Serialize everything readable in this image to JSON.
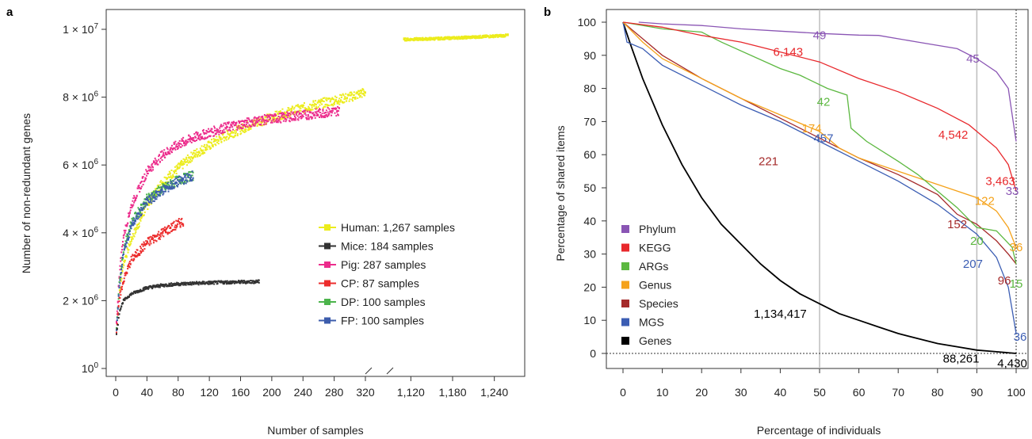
{
  "chart_data": [
    {
      "type": "scatter",
      "panel_label": "a",
      "xlabel": "Number of samples",
      "ylabel": "Number of non-redundant genes",
      "xlim_left": [
        0,
        320
      ],
      "xlim_right": [
        1090,
        1270
      ],
      "ylim": [
        0,
        10000000
      ],
      "x_ticks_left": [
        0,
        40,
        80,
        120,
        160,
        200,
        240,
        280,
        320
      ],
      "x_ticks_right": [
        1120,
        1180,
        1240
      ],
      "x_tick_labels_left": [
        "0",
        "40",
        "80",
        "120",
        "160",
        "200",
        "240",
        "280",
        "320"
      ],
      "x_tick_labels_right": [
        "1,120",
        "1,180",
        "1,240"
      ],
      "y_ticks": [
        0,
        2000000,
        4000000,
        6000000,
        8000000,
        10000000
      ],
      "y_tick_bases": [
        "10",
        "2 × 10",
        "4 × 10",
        "6 × 10",
        "8 × 10",
        "1 × 10"
      ],
      "y_tick_exps": [
        "0",
        "6",
        "6",
        "6",
        "6",
        "7"
      ],
      "legend_position": "bottom-right",
      "series": [
        {
          "name": "Human: 1,267 samples",
          "color": "#ecec1c",
          "points": [
            [
              5,
              2300000
            ],
            [
              10,
              3100000
            ],
            [
              20,
              3800000
            ],
            [
              40,
              4800000
            ],
            [
              60,
              5500000
            ],
            [
              80,
              5900000
            ],
            [
              100,
              6300000
            ],
            [
              140,
              6850000
            ],
            [
              180,
              7250000
            ],
            [
              220,
              7550000
            ],
            [
              260,
              7800000
            ],
            [
              300,
              8000000
            ],
            [
              320,
              8150000
            ]
          ],
          "points_right": [
            [
              1110,
              9700000
            ],
            [
              1150,
              9720000
            ],
            [
              1200,
              9760000
            ],
            [
              1260,
              9820000
            ]
          ]
        },
        {
          "name": "Mice: 184 samples",
          "color": "#333333",
          "points": [
            [
              1,
              1000000
            ],
            [
              5,
              1700000
            ],
            [
              10,
              2000000
            ],
            [
              20,
              2200000
            ],
            [
              40,
              2380000
            ],
            [
              60,
              2450000
            ],
            [
              80,
              2490000
            ],
            [
              100,
              2510000
            ],
            [
              140,
              2540000
            ],
            [
              184,
              2560000
            ]
          ]
        },
        {
          "name": "Pig: 287 samples",
          "color": "#ec2c8c",
          "points": [
            [
              1,
              1300000
            ],
            [
              5,
              2900000
            ],
            [
              10,
              3900000
            ],
            [
              20,
              4800000
            ],
            [
              40,
              5800000
            ],
            [
              60,
              6300000
            ],
            [
              80,
              6600000
            ],
            [
              100,
              6800000
            ],
            [
              140,
              7100000
            ],
            [
              180,
              7300000
            ],
            [
              220,
              7420000
            ],
            [
              260,
              7520000
            ],
            [
              287,
              7600000
            ]
          ]
        },
        {
          "name": "CP: 87 samples",
          "color": "#ec2c2c",
          "points": [
            [
              1,
              1100000
            ],
            [
              5,
              2100000
            ],
            [
              10,
              2600000
            ],
            [
              20,
              3200000
            ],
            [
              40,
              3700000
            ],
            [
              60,
              4000000
            ],
            [
              87,
              4350000
            ]
          ]
        },
        {
          "name": "DP: 100 samples",
          "color": "#4cb44c",
          "points": [
            [
              1,
              1200000
            ],
            [
              5,
              2600000
            ],
            [
              10,
              3500000
            ],
            [
              20,
              4300000
            ],
            [
              40,
              5000000
            ],
            [
              60,
              5300000
            ],
            [
              80,
              5550000
            ],
            [
              100,
              5700000
            ]
          ]
        },
        {
          "name": "FP: 100 samples",
          "color": "#3c5cac",
          "points": [
            [
              1,
              1200000
            ],
            [
              5,
              2500000
            ],
            [
              10,
              3400000
            ],
            [
              20,
              4200000
            ],
            [
              40,
              4900000
            ],
            [
              60,
              5250000
            ],
            [
              80,
              5500000
            ],
            [
              100,
              5700000
            ]
          ]
        }
      ]
    },
    {
      "type": "line",
      "panel_label": "b",
      "xlabel": "Percentage of individuals",
      "ylabel": "Percentage of shared items",
      "xlim": [
        0,
        100
      ],
      "ylim": [
        0,
        100
      ],
      "x_ticks": [
        0,
        10,
        20,
        30,
        40,
        50,
        60,
        70,
        80,
        90,
        100
      ],
      "y_ticks": [
        0,
        10,
        20,
        30,
        40,
        50,
        60,
        70,
        80,
        90,
        100
      ],
      "legend_position": "bottom-left",
      "reference_lines_x": [
        50,
        90
      ],
      "series": [
        {
          "name": "Phylum",
          "color": "#8a55b4",
          "points": [
            [
              4,
              100
            ],
            [
              10,
              99.5
            ],
            [
              20,
              99
            ],
            [
              30,
              98
            ],
            [
              40,
              97.3
            ],
            [
              50,
              96.6
            ],
            [
              60,
              96.1
            ],
            [
              65,
              96
            ],
            [
              75,
              94
            ],
            [
              85,
              92
            ],
            [
              90,
              89
            ],
            [
              95,
              85
            ],
            [
              98,
              80
            ],
            [
              99,
              72
            ],
            [
              100,
              64
            ]
          ]
        },
        {
          "name": "KEGG",
          "color": "#e8282c",
          "points": [
            [
              0,
              100
            ],
            [
              10,
              98.5
            ],
            [
              20,
              96
            ],
            [
              30,
              94
            ],
            [
              40,
              91
            ],
            [
              50,
              88
            ],
            [
              60,
              83
            ],
            [
              70,
              79
            ],
            [
              80,
              74
            ],
            [
              88,
              69
            ],
            [
              90,
              67
            ],
            [
              95,
              62
            ],
            [
              98,
              57
            ],
            [
              100,
              49
            ]
          ]
        },
        {
          "name": "ARGs",
          "color": "#5cb840",
          "points": [
            [
              0,
              100
            ],
            [
              10,
              98
            ],
            [
              20,
              97
            ],
            [
              25,
              94
            ],
            [
              40,
              86
            ],
            [
              45,
              84
            ],
            [
              52,
              80
            ],
            [
              57,
              78
            ],
            [
              58,
              68
            ],
            [
              62,
              64
            ],
            [
              70,
              58
            ],
            [
              75,
              54
            ],
            [
              85,
              44
            ],
            [
              90,
              38
            ],
            [
              95,
              37
            ],
            [
              99,
              32
            ],
            [
              100,
              27
            ]
          ]
        },
        {
          "name": "Genus",
          "color": "#f5a21a",
          "points": [
            [
              0,
              100
            ],
            [
              5,
              94
            ],
            [
              10,
              89
            ],
            [
              20,
              83
            ],
            [
              30,
              77
            ],
            [
              40,
              72
            ],
            [
              50,
              67
            ],
            [
              55,
              62
            ],
            [
              60,
              59
            ],
            [
              70,
              55
            ],
            [
              80,
              51
            ],
            [
              90,
              47
            ],
            [
              95,
              43
            ],
            [
              98,
              38
            ],
            [
              100,
              32
            ]
          ]
        },
        {
          "name": "Species",
          "color": "#a52a2a",
          "points": [
            [
              0,
              100
            ],
            [
              5,
              95
            ],
            [
              10,
              90
            ],
            [
              20,
              83
            ],
            [
              30,
              77
            ],
            [
              40,
              71
            ],
            [
              50,
              65
            ],
            [
              60,
              59
            ],
            [
              70,
              54
            ],
            [
              80,
              48
            ],
            [
              85,
              42
            ],
            [
              90,
              39
            ],
            [
              95,
              34
            ],
            [
              98,
              30
            ],
            [
              100,
              27
            ]
          ]
        },
        {
          "name": "MGS",
          "color": "#3b5db3",
          "points": [
            [
              0,
              100
            ],
            [
              1,
              94
            ],
            [
              5,
              92
            ],
            [
              10,
              87
            ],
            [
              20,
              81
            ],
            [
              30,
              75
            ],
            [
              40,
              70
            ],
            [
              50,
              64
            ],
            [
              60,
              58
            ],
            [
              70,
              52
            ],
            [
              80,
              45
            ],
            [
              90,
              36
            ],
            [
              95,
              29
            ],
            [
              98,
              20
            ],
            [
              100,
              6
            ]
          ]
        },
        {
          "name": "Genes",
          "color": "#000000",
          "points": [
            [
              0,
              100
            ],
            [
              2,
              93
            ],
            [
              5,
              83
            ],
            [
              10,
              69
            ],
            [
              15,
              57
            ],
            [
              20,
              47
            ],
            [
              25,
              39
            ],
            [
              30,
              33
            ],
            [
              35,
              27
            ],
            [
              40,
              22
            ],
            [
              45,
              18
            ],
            [
              50,
              15
            ],
            [
              55,
              12
            ],
            [
              60,
              10
            ],
            [
              65,
              8
            ],
            [
              70,
              6
            ],
            [
              75,
              4.5
            ],
            [
              80,
              3
            ],
            [
              85,
              2
            ],
            [
              90,
              1
            ],
            [
              95,
              0.5
            ],
            [
              100,
              0
            ]
          ]
        }
      ],
      "annotations": [
        {
          "text": "49",
          "x": 50,
          "y": 96,
          "color": "#8a55b4"
        },
        {
          "text": "45",
          "x": 89,
          "y": 89,
          "color": "#8a55b4"
        },
        {
          "text": "33",
          "x": 99,
          "y": 49,
          "color": "#8a55b4"
        },
        {
          "text": "6,143",
          "x": 42,
          "y": 91,
          "color": "#e8282c"
        },
        {
          "text": "4,542",
          "x": 84,
          "y": 66,
          "color": "#e8282c"
        },
        {
          "text": "3,463",
          "x": 96,
          "y": 52,
          "color": "#e8282c"
        },
        {
          "text": "42",
          "x": 51,
          "y": 76,
          "color": "#5cb840"
        },
        {
          "text": "20",
          "x": 90,
          "y": 34,
          "color": "#5cb840"
        },
        {
          "text": "15",
          "x": 100,
          "y": 21,
          "color": "#5cb840"
        },
        {
          "text": "174",
          "x": 48,
          "y": 68,
          "color": "#f5a21a"
        },
        {
          "text": "122",
          "x": 92,
          "y": 46,
          "color": "#f5a21a"
        },
        {
          "text": "36",
          "x": 100,
          "y": 32,
          "color": "#f5a21a"
        },
        {
          "text": "221",
          "x": 37,
          "y": 58,
          "color": "#a52a2a"
        },
        {
          "text": "152",
          "x": 85,
          "y": 39,
          "color": "#a52a2a"
        },
        {
          "text": "96",
          "x": 97,
          "y": 22,
          "color": "#a52a2a"
        },
        {
          "text": "457",
          "x": 51,
          "y": 65,
          "color": "#3b5db3"
        },
        {
          "text": "207",
          "x": 89,
          "y": 27,
          "color": "#3b5db3"
        },
        {
          "text": "36",
          "x": 101,
          "y": 5,
          "color": "#3b5db3"
        },
        {
          "text": "1,134,417",
          "x": 40,
          "y": 12,
          "color": "#000000"
        },
        {
          "text": "88,261",
          "x": 86,
          "y": -1.5,
          "color": "#000000"
        },
        {
          "text": "4,430",
          "x": 99,
          "y": -3,
          "color": "#000000"
        }
      ]
    }
  ]
}
